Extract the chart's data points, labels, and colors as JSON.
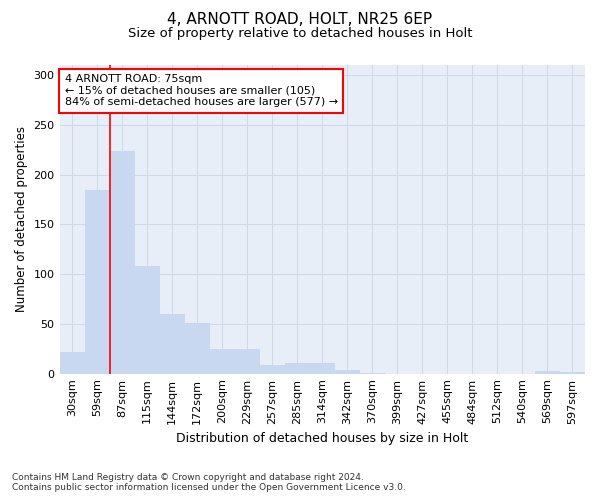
{
  "title": "4, ARNOTT ROAD, HOLT, NR25 6EP",
  "subtitle": "Size of property relative to detached houses in Holt",
  "xlabel": "Distribution of detached houses by size in Holt",
  "ylabel": "Number of detached properties",
  "footnote1": "Contains HM Land Registry data © Crown copyright and database right 2024.",
  "footnote2": "Contains public sector information licensed under the Open Government Licence v3.0.",
  "annotation_line1": "4 ARNOTT ROAD: 75sqm",
  "annotation_line2": "← 15% of detached houses are smaller (105)",
  "annotation_line3": "84% of semi-detached houses are larger (577) →",
  "bar_color": "#c8d8f0",
  "grid_color": "#cdd8e8",
  "background_color": "#e8eef8",
  "vline_color": "red",
  "vline_x": 1.5,
  "categories": [
    "30sqm",
    "59sqm",
    "87sqm",
    "115sqm",
    "144sqm",
    "172sqm",
    "200sqm",
    "229sqm",
    "257sqm",
    "285sqm",
    "314sqm",
    "342sqm",
    "370sqm",
    "399sqm",
    "427sqm",
    "455sqm",
    "484sqm",
    "512sqm",
    "540sqm",
    "569sqm",
    "597sqm"
  ],
  "values": [
    22,
    184,
    224,
    108,
    60,
    51,
    25,
    25,
    9,
    11,
    11,
    4,
    1,
    0,
    0,
    0,
    0,
    0,
    0,
    3,
    2
  ],
  "ylim": [
    0,
    310
  ],
  "yticks": [
    0,
    50,
    100,
    150,
    200,
    250,
    300
  ],
  "title_fontsize": 11,
  "subtitle_fontsize": 9.5,
  "ylabel_fontsize": 8.5,
  "xlabel_fontsize": 9,
  "tick_fontsize": 8,
  "annotation_fontsize": 8,
  "footnote_fontsize": 6.5
}
